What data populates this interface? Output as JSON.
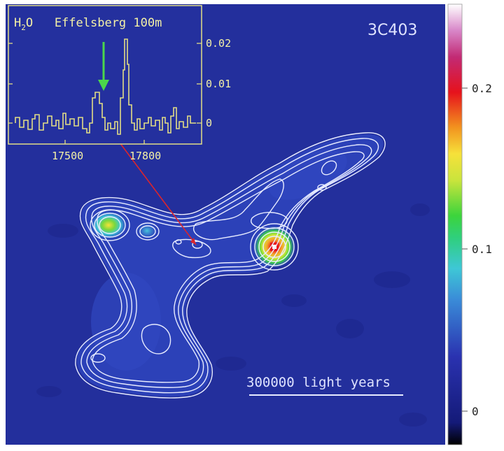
{
  "image": {
    "object_label": "3C403",
    "scale_bar_label": "300000 light years"
  },
  "inset": {
    "title_molecule": "H",
    "title_subscript": "2",
    "title_rest": "O   Effelsberg 100m",
    "x_ticks": [
      "17500",
      "17800"
    ],
    "y_ticks": [
      "0.02",
      "0.01",
      "0"
    ]
  },
  "colorbar": {
    "ticks": [
      "0.2",
      "0.1",
      "0"
    ]
  },
  "colors": {
    "background": "#232f9c",
    "contour": "#e8ecff",
    "inset_line": "#e2dd86",
    "arrow_green": "#4bd64b",
    "pointer_red": "#d9252e"
  }
}
